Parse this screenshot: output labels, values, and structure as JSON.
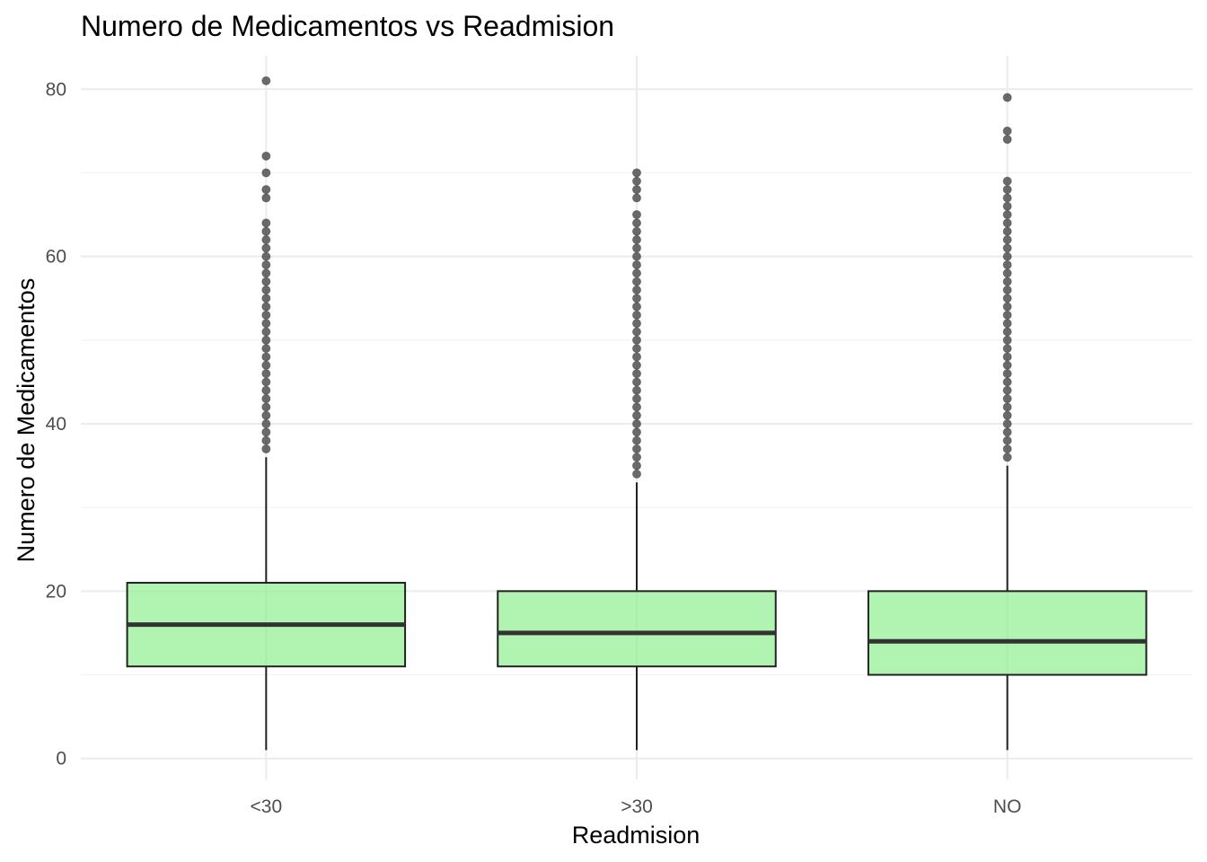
{
  "chart_data": {
    "type": "boxplot",
    "title": "Numero de Medicamentos vs Readmision",
    "xlabel": "Readmision",
    "ylabel": "Numero de Medicamentos",
    "categories": [
      "<30",
      ">30",
      "NO"
    ],
    "ylim": [
      -2.5,
      84
    ],
    "y_ticks": [
      0,
      20,
      40,
      60,
      80
    ],
    "y_tick_labels": [
      "0",
      "20",
      "40",
      "60",
      "80"
    ],
    "grid": true,
    "box_color": "#90EE90",
    "box_alpha": 0.7,
    "series": [
      {
        "category": "<30",
        "min": 1,
        "q1": 11,
        "median": 16,
        "q3": 21,
        "max": 36,
        "outliers": [
          37,
          38,
          39,
          40,
          41,
          42,
          43,
          44,
          45,
          46,
          47,
          48,
          49,
          50,
          51,
          52,
          53,
          54,
          55,
          56,
          57,
          58,
          59,
          60,
          61,
          62,
          63,
          64,
          67,
          68,
          70,
          72,
          81
        ]
      },
      {
        "category": ">30",
        "min": 1,
        "q1": 11,
        "median": 15,
        "q3": 20,
        "max": 33,
        "outliers": [
          34,
          35,
          36,
          37,
          38,
          39,
          40,
          41,
          42,
          43,
          44,
          45,
          46,
          47,
          48,
          49,
          50,
          51,
          52,
          53,
          54,
          55,
          56,
          57,
          58,
          59,
          60,
          61,
          62,
          63,
          64,
          65,
          67,
          68,
          69,
          70
        ]
      },
      {
        "category": "NO",
        "min": 1,
        "q1": 10,
        "median": 14,
        "q3": 20,
        "max": 35,
        "outliers": [
          36,
          37,
          38,
          39,
          40,
          41,
          42,
          43,
          44,
          45,
          46,
          47,
          48,
          49,
          50,
          51,
          52,
          53,
          54,
          55,
          56,
          57,
          58,
          59,
          60,
          61,
          62,
          63,
          64,
          65,
          66,
          67,
          68,
          69,
          74,
          75,
          79
        ]
      }
    ]
  }
}
